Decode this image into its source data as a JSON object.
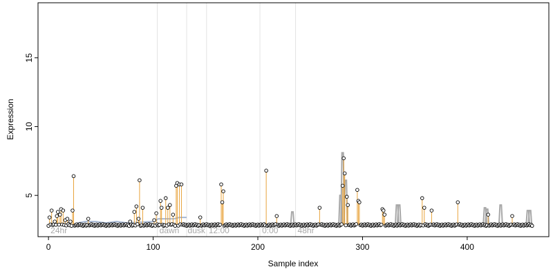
{
  "chart_data": {
    "type": "scatter",
    "xlabel": "Sample index",
    "ylabel": "Expression",
    "xlim": [
      -10,
      478
    ],
    "ylim": [
      2,
      19
    ],
    "xticks": [
      0,
      100,
      200,
      300,
      400
    ],
    "yticks": [
      5,
      10,
      15
    ],
    "grid": false,
    "baseline": 2.85,
    "annotations": [
      {
        "x": 104,
        "label": ""
      },
      {
        "x": 132,
        "label": ""
      },
      {
        "x": 151,
        "label": ""
      },
      {
        "x": 202,
        "label": ""
      },
      {
        "x": 236,
        "label": ""
      }
    ],
    "annotation_labels": [
      {
        "x": 2,
        "label": "24hr"
      },
      {
        "x": 106,
        "label": "dawn"
      },
      {
        "x": 133,
        "label": "dusk"
      },
      {
        "x": 153,
        "label": "12:00"
      },
      {
        "x": 204,
        "label": "0:00"
      },
      {
        "x": 238,
        "label": "48hr"
      }
    ],
    "series": [
      {
        "color": "#e8a33b",
        "style": "spikes",
        "points": [
          [
            1,
            3.4
          ],
          [
            3,
            3.9
          ],
          [
            6,
            3.1
          ],
          [
            8,
            3.5
          ],
          [
            9,
            3.8
          ],
          [
            11,
            3.6
          ],
          [
            12,
            4.0
          ],
          [
            14,
            3.9
          ],
          [
            16,
            3.2
          ],
          [
            18,
            3.3
          ],
          [
            21,
            3.1
          ],
          [
            23,
            3.9
          ],
          [
            24,
            6.4
          ],
          [
            38,
            3.3
          ],
          [
            78,
            3.1
          ],
          [
            82,
            3.8
          ],
          [
            84,
            4.2
          ],
          [
            86,
            3.3
          ],
          [
            87,
            6.1
          ],
          [
            90,
            4.1
          ],
          [
            101,
            3.2
          ],
          [
            103,
            3.7
          ],
          [
            107,
            4.6
          ],
          [
            108,
            4.1
          ],
          [
            112,
            4.8
          ],
          [
            114,
            4.1
          ],
          [
            116,
            4.3
          ],
          [
            119,
            3.6
          ],
          [
            122,
            5.7
          ],
          [
            123,
            5.9
          ],
          [
            125,
            5.8
          ],
          [
            127,
            5.8
          ],
          [
            145,
            3.4
          ],
          [
            165,
            5.8
          ],
          [
            166,
            4.5
          ],
          [
            167,
            5.3
          ],
          [
            208,
            6.8
          ],
          [
            218,
            3.5
          ],
          [
            259,
            4.1
          ],
          [
            281,
            5.7
          ],
          [
            282,
            7.7
          ],
          [
            283,
            6.6
          ],
          [
            285,
            4.9
          ],
          [
            286,
            4.3
          ],
          [
            295,
            5.4
          ],
          [
            296,
            4.6
          ],
          [
            297,
            4.5
          ],
          [
            319,
            4.0
          ],
          [
            320,
            3.9
          ],
          [
            321,
            3.6
          ],
          [
            357,
            4.8
          ],
          [
            359,
            4.1
          ],
          [
            366,
            3.9
          ],
          [
            391,
            4.5
          ],
          [
            420,
            3.6
          ],
          [
            443,
            3.5
          ]
        ]
      },
      {
        "color": "#a6b8d4",
        "style": "line",
        "points": [
          [
            28,
            3.0
          ],
          [
            35,
            3.1
          ],
          [
            45,
            3.1
          ],
          [
            55,
            3.0
          ],
          [
            65,
            3.1
          ],
          [
            75,
            3.0
          ],
          [
            100,
            3.1
          ],
          [
            105,
            3.3
          ],
          [
            110,
            3.3
          ],
          [
            115,
            3.3
          ],
          [
            120,
            3.3
          ],
          [
            125,
            3.4
          ],
          [
            132,
            3.4
          ]
        ]
      },
      {
        "color": "#a8a8a8",
        "style": "peaks",
        "points": [
          [
            233,
            3.8
          ],
          [
            279,
            5.0
          ],
          [
            281,
            8.1
          ],
          [
            284,
            6.1
          ],
          [
            333,
            4.3
          ],
          [
            335,
            4.3
          ],
          [
            417,
            4.1
          ],
          [
            419,
            4.0
          ],
          [
            432,
            4.3
          ],
          [
            458,
            3.9
          ],
          [
            460,
            3.9
          ]
        ]
      }
    ]
  }
}
